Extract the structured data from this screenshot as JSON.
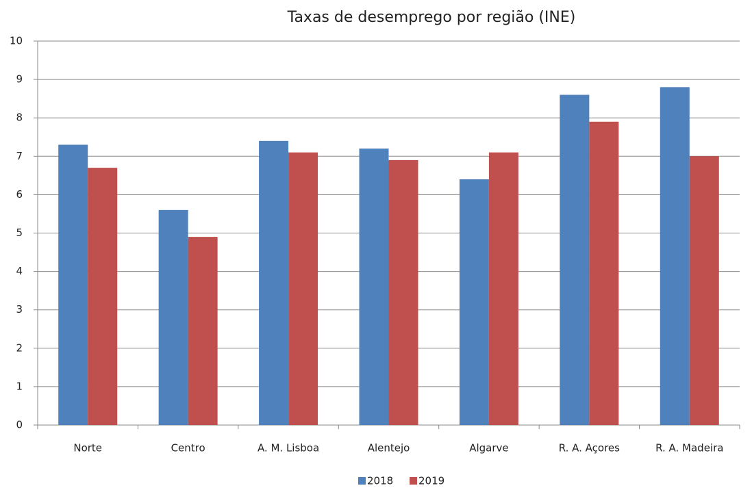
{
  "chart_data": {
    "type": "bar",
    "title": "Taxas de desemprego por região (INE)",
    "categories": [
      "Norte",
      "Centro",
      "A. M. Lisboa",
      "Alentejo",
      "Algarve",
      "R. A. Açores",
      "R. A. Madeira"
    ],
    "series": [
      {
        "name": "2018",
        "color": "#4f81bd",
        "values": [
          7.3,
          5.6,
          7.4,
          7.2,
          6.4,
          8.6,
          8.8
        ]
      },
      {
        "name": "2019",
        "color": "#c0504d",
        "values": [
          6.7,
          4.9,
          7.1,
          6.9,
          7.1,
          7.9,
          7.0
        ]
      }
    ],
    "ylim": [
      0,
      10
    ],
    "yticks": [
      0,
      1,
      2,
      3,
      4,
      5,
      6,
      7,
      8,
      9,
      10
    ],
    "grid": true,
    "legend": "bottom"
  }
}
